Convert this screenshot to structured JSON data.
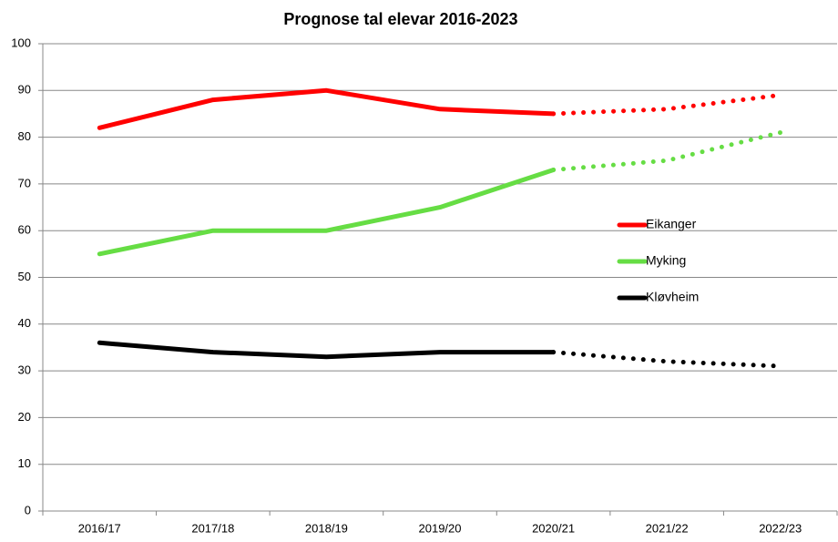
{
  "chart_data": {
    "type": "line",
    "title": "Prognose tal elevar 2016-2023",
    "categories": [
      "2016/17",
      "2017/18",
      "2018/19",
      "2019/20",
      "2020/21",
      "2021/22",
      "2022/23"
    ],
    "series": [
      {
        "name": "Eikanger",
        "color": "#ff0000",
        "values": [
          82,
          88,
          90,
          86,
          85,
          86,
          89
        ]
      },
      {
        "name": "Myking",
        "color": "#66dd44",
        "values": [
          55,
          60,
          60,
          65,
          73,
          75,
          81
        ]
      },
      {
        "name": "Kløvheim",
        "color": "#000000",
        "values": [
          36,
          34,
          33,
          34,
          34,
          32,
          31
        ]
      }
    ],
    "dotted_from": "2020/21",
    "ylim": [
      0,
      100
    ],
    "yticks": [
      0,
      10,
      20,
      30,
      40,
      50,
      60,
      70,
      80,
      90,
      100
    ],
    "grid": true
  }
}
